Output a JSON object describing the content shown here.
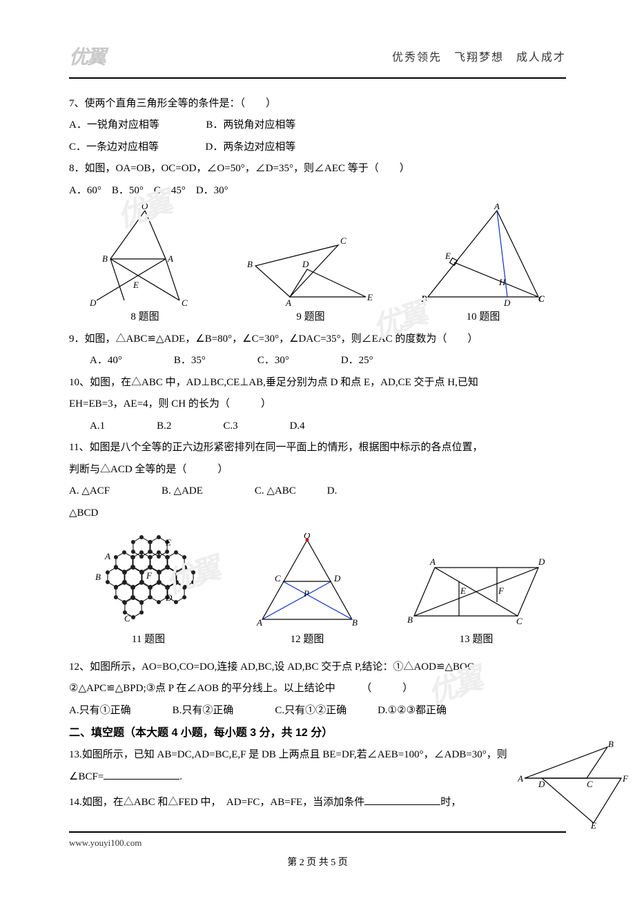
{
  "header": {
    "logo": "优翼",
    "slogan": "优秀领先　飞翔梦想　成人成才"
  },
  "q7": {
    "stem": "7、使两个直角三角形全等的条件是：（　　）",
    "optA": "A．一锐角对应相等",
    "optB": "B．两锐角对应相等",
    "optC": "C．一条边对应相等",
    "optD": "D．两条边对应相等"
  },
  "q8": {
    "stem": "8．如图，OA=OB，OC=OD，∠O=50°，∠D=35°，则∠AEC 等于（　　）",
    "opts": "A．60°　B．50°　C．45°　D．30°"
  },
  "figrow1": {
    "c8": "8 题图",
    "c9": "9 题图",
    "c10": "10 题图"
  },
  "q9": {
    "stem": "9．如图，△ABC≌△ADE，∠B=80°，∠C=30°，∠DAC=35°，则∠EAC 的度数为（　　）",
    "opts": "A．40°　　　　　B．35°　　　　　C．30°　　　　　D．25°"
  },
  "q10": {
    "l1": "10、如图，在△ABC 中，AD⊥BC,CE⊥AB,垂足分别为点 D 和点 E，AD,CE 交于点 H,已知",
    "l2": "EH=EB=3，AE=4，则 CH 的长为（　　　）",
    "opts": "A.1　　　　　B.2　　　　　C.3　　　　　D.4"
  },
  "q11": {
    "l1": "11、如图是八个全等的正六边形紧密排列在同一平面上的情形，根据图中标示的各点位置，",
    "l2": "判断与△ACD 全等的是（　　　）",
    "opts1": "A. △ACF　　　　　B. △ADE　　　　　C. △ABC　　　D.",
    "opts2": "△BCD"
  },
  "figrow2": {
    "c11": "11 题图",
    "c12": "12 题图",
    "c13": "13 题图"
  },
  "q12": {
    "l1": "12、如图所示，AO=BO,CO=DO,连接 AD,BC,设 AD,BC 交于点 P,结论：①△AOD≌△BOC;",
    "l2": "②△APC≌△BPD;③点 P 在∠AOB 的平分线上。以上结论中　　　（　　　）",
    "opts": "A.只有①正确　　　　B.只有②正确　　　　C.只有①②正确　　　D.①②③都正确"
  },
  "sec2": "二、填空题（本大题 4 小题，每小题 3 分，共 12 分）",
  "q13": {
    "l1": "13.如图所示，已知 AB=DC,AD=BC,E,F 是 DB 上两点且 BE=DF,若∠AEB=100°，∠ADB=30°，则",
    "l2pre": "∠BCF=",
    "l2post": "."
  },
  "q14": {
    "pre": "14.如图，在△ABC 和△FED 中，　AD=FC，AB=FE，当添加条件",
    "post": "时，"
  },
  "footer": {
    "url": "www.youyi100.com",
    "page": "第 2 页 共 5 页"
  },
  "figs": {
    "fig8": {
      "labels": {
        "O": "O",
        "A": "A",
        "B": "B",
        "C": "C",
        "D": "D",
        "E": "E"
      }
    },
    "fig9": {
      "labels": {
        "A": "A",
        "B": "B",
        "C": "C",
        "D": "D",
        "E": "E"
      }
    },
    "fig10": {
      "labels": {
        "A": "A",
        "B": "B",
        "C": "C",
        "D": "D",
        "E": "E",
        "H": "H"
      }
    },
    "fig12": {
      "labels": {
        "O": "O",
        "A": "A",
        "B": "B",
        "C": "C",
        "D": "D",
        "P": "P"
      }
    },
    "fig13": {
      "labels": {
        "A": "A",
        "B": "B",
        "C": "C",
        "D": "D",
        "E": "E",
        "F": "F"
      }
    },
    "fig14": {
      "labels": {
        "A": "A",
        "B": "B",
        "C": "C",
        "D": "D",
        "E": "E",
        "F": "F"
      }
    },
    "fig11": {
      "labels": {
        "A": "A",
        "B": "B",
        "C": "C",
        "D": "D",
        "E": "E",
        "F": "F"
      }
    }
  },
  "colors": {
    "stroke": "#000000",
    "blue": "#1030c0",
    "red": "#d01010",
    "dot": "#202020"
  }
}
